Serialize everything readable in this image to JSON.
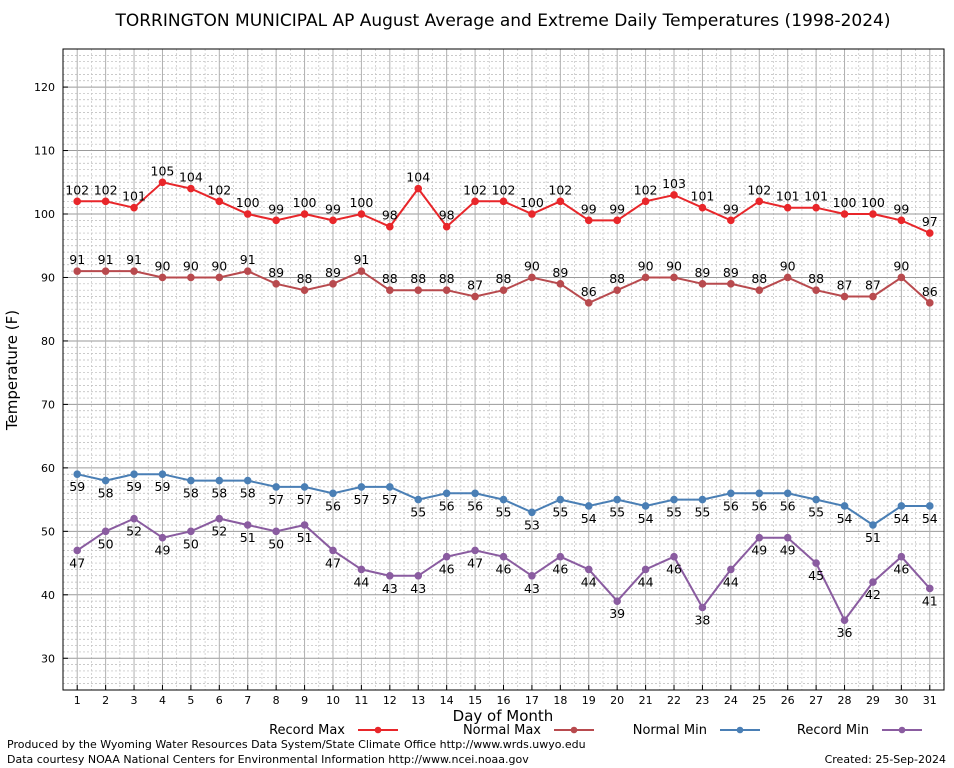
{
  "chart_data": {
    "type": "line",
    "title": "TORRINGTON MUNICIPAL AP August Average and Extreme Daily Temperatures (1998-2024)",
    "xlabel": "Day of Month",
    "ylabel": "Temperature (F)",
    "x": [
      1,
      2,
      3,
      4,
      5,
      6,
      7,
      8,
      9,
      10,
      11,
      12,
      13,
      14,
      15,
      16,
      17,
      18,
      19,
      20,
      21,
      22,
      23,
      24,
      25,
      26,
      27,
      28,
      29,
      30,
      31
    ],
    "xlim": [
      0.5,
      31.5
    ],
    "ylim": [
      25,
      126
    ],
    "yticks": [
      30,
      40,
      50,
      60,
      70,
      80,
      90,
      100,
      110,
      120
    ],
    "grid": true,
    "legend_position": "bottom",
    "series": [
      {
        "name": "Record Max",
        "color": "#e8262a",
        "label_position": "above",
        "values": [
          102,
          102,
          101,
          105,
          104,
          102,
          100,
          99,
          100,
          99,
          100,
          98,
          104,
          98,
          102,
          102,
          100,
          102,
          99,
          99,
          102,
          103,
          101,
          99,
          102,
          101,
          101,
          100,
          100,
          99,
          97
        ]
      },
      {
        "name": "Normal Max",
        "color": "#b84a4e",
        "label_position": "above",
        "values": [
          91,
          91,
          91,
          90,
          90,
          90,
          91,
          89,
          88,
          89,
          91,
          88,
          88,
          88,
          87,
          88,
          90,
          89,
          86,
          88,
          90,
          90,
          89,
          89,
          88,
          90,
          88,
          87,
          87,
          90,
          86
        ]
      },
      {
        "name": "Normal Min",
        "color": "#4a7fb5",
        "label_position": "below",
        "values": [
          59,
          58,
          59,
          59,
          58,
          58,
          58,
          57,
          57,
          56,
          57,
          57,
          55,
          56,
          56,
          55,
          53,
          55,
          54,
          55,
          54,
          55,
          55,
          56,
          56,
          56,
          55,
          54,
          51,
          54,
          54
        ]
      },
      {
        "name": "Record Min",
        "color": "#8a5ca0",
        "label_position": "below",
        "values": [
          47,
          50,
          52,
          49,
          50,
          52,
          51,
          50,
          51,
          47,
          44,
          43,
          43,
          46,
          47,
          46,
          43,
          46,
          44,
          39,
          44,
          46,
          38,
          44,
          49,
          49,
          45,
          36,
          42,
          46,
          41
        ]
      }
    ]
  },
  "footer": {
    "left_line1": "Produced by the Wyoming Water Resources Data System/State Climate Office http://www.wrds.uwyo.edu",
    "left_line2": "Data courtesy NOAA National Centers for Environmental Information http://www.ncei.noaa.gov",
    "created": "Created:  25-Sep-2024"
  }
}
